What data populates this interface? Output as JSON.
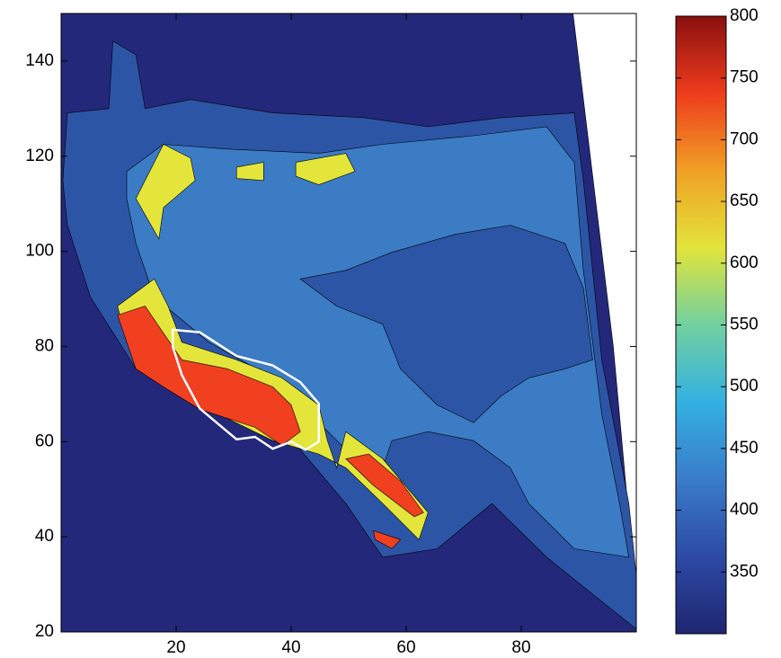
{
  "chart_data": {
    "type": "contour",
    "xlim": [
      0,
      100
    ],
    "ylim": [
      20,
      150
    ],
    "xticks": [
      20,
      40,
      60,
      80
    ],
    "yticks": [
      20,
      40,
      60,
      80,
      100,
      120,
      140
    ],
    "clim": [
      300,
      800
    ],
    "cticks": [
      350,
      400,
      450,
      500,
      550,
      600,
      650,
      700,
      750,
      800
    ],
    "colormap": [
      "#1f2670",
      "#2c4aa6",
      "#3a7cc8",
      "#33b0e2",
      "#72d0a0",
      "#e2e43a",
      "#f0a024",
      "#ee3c1c",
      "#8a1010"
    ],
    "regions": [
      {
        "color": "#23287a",
        "x": [
          0,
          100,
          99,
          96,
          93,
          91,
          89,
          0
        ],
        "y": [
          20,
          20,
          40,
          80,
          110,
          130,
          150,
          150
        ]
      },
      {
        "color": "#2d55a6",
        "x": [
          1.1,
          8.3,
          9,
          13,
          14.6,
          22.5,
          36.8,
          52.7,
          63.8,
          76.5,
          89.2,
          90.8,
          94,
          98.7,
          100,
          100,
          84.4,
          74.9,
          65.4,
          55.9,
          49.5,
          41.6,
          28.9,
          13,
          5.1,
          1.1,
          0.3
        ],
        "y": [
          129.1,
          130,
          144.2,
          141.3,
          130,
          131.9,
          129.1,
          128.1,
          126.2,
          128.1,
          129.1,
          114.9,
          77.2,
          47,
          31.9,
          20.6,
          35.7,
          47,
          37.5,
          35.7,
          47,
          58.3,
          67.7,
          75.3,
          90.4,
          105.5,
          114.9
        ]
      },
      {
        "color": "#3b7cc4",
        "x": [
          11.4,
          17.8,
          28.9,
          44.8,
          55.9,
          71.7,
          84.4,
          89.2,
          90.8,
          93.2,
          94,
          97.1,
          98.7,
          89.2,
          81.3,
          78.1,
          71.7,
          63.8,
          57.5,
          55.9,
          59,
          52.7,
          44.8,
          36.8,
          25.7,
          16.2,
          13,
          11.4
        ],
        "y": [
          116.8,
          122.5,
          121.5,
          120.6,
          122.5,
          124.3,
          126.2,
          118.7,
          96,
          73.4,
          65.8,
          47,
          35.7,
          37.5,
          47,
          54.5,
          60.2,
          62.1,
          60.2,
          54.5,
          47,
          54.5,
          64,
          73.4,
          80.9,
          90.4,
          101.7,
          111.1
        ]
      },
      {
        "color": "#2d55a6",
        "x": [
          41.6,
          49.5,
          57.5,
          68.6,
          78.1,
          87.6,
          90.8,
          92.4,
          87.6,
          81.3,
          76.5,
          71.7,
          65.4,
          59,
          55.9,
          47.9
        ],
        "y": [
          94.2,
          96,
          99.8,
          103.6,
          105.5,
          101.7,
          92.3,
          77.2,
          75.3,
          73.4,
          69.6,
          64,
          67.7,
          75.3,
          84.7,
          88.5
        ]
      },
      {
        "color": "#e4e53a",
        "x": [
          9.8,
          16.2,
          18.6,
          21,
          30.5,
          38.4,
          44.8,
          46.3,
          47.9,
          49.5,
          55.9,
          63.8,
          62.2,
          55.9,
          49.5,
          44.8,
          36.8,
          27.3,
          19.4,
          14.6,
          11.4
        ],
        "y": [
          88.5,
          94.2,
          88.5,
          80.9,
          77.2,
          73.4,
          67.7,
          60.2,
          54.5,
          62.1,
          56.4,
          45.1,
          39.4,
          47,
          54.5,
          57.4,
          60.2,
          65.8,
          71.5,
          77.2,
          80.9
        ]
      },
      {
        "color": "#e4e53a",
        "x": [
          13,
          17.8,
          22.5,
          23.3,
          17.8,
          17
        ],
        "y": [
          111.1,
          122.5,
          119.6,
          114.9,
          109.2,
          102.6
        ]
      },
      {
        "color": "#e4e53a",
        "x": [
          30.5,
          35.2,
          35.2,
          30.5
        ],
        "y": [
          117.7,
          118.7,
          114.9,
          115.3
        ]
      },
      {
        "color": "#e4e53a",
        "x": [
          40.8,
          49.5,
          51.1,
          44.8,
          40.8
        ],
        "y": [
          118.7,
          120.6,
          116.8,
          114,
          115.8
        ]
      },
      {
        "color": "#f04020",
        "x": [
          9.8,
          14.6,
          17.8,
          21,
          28.9,
          36.8,
          40,
          41.6,
          38.4,
          33.7,
          24.1,
          17.8,
          13
        ],
        "y": [
          86.6,
          88.5,
          82.8,
          77.2,
          75.3,
          71.5,
          67.7,
          62.1,
          59.2,
          63,
          66.8,
          71.5,
          75.3
        ]
      },
      {
        "color": "#f04020",
        "x": [
          49.5,
          53.5,
          59,
          63,
          61.4,
          54.3
        ],
        "y": [
          56.4,
          57.4,
          51.7,
          45.1,
          44.2,
          50.8
        ]
      },
      {
        "color": "#f04020",
        "x": [
          54.3,
          59,
          57.5,
          54.6
        ],
        "y": [
          41.3,
          39.4,
          37.5,
          39.4
        ]
      }
    ],
    "outline": {
      "color": "#ffffff",
      "x": [
        19.4,
        24.1,
        30.5,
        36.8,
        41.6,
        44.8,
        44.8,
        42.5,
        40,
        36.8,
        33.7,
        30.5,
        24.1,
        21,
        19.4
      ],
      "y": [
        83.5,
        83,
        78,
        76,
        72.5,
        68,
        60,
        58.3,
        60,
        58.5,
        61,
        60.5,
        67,
        74,
        80
      ]
    }
  }
}
